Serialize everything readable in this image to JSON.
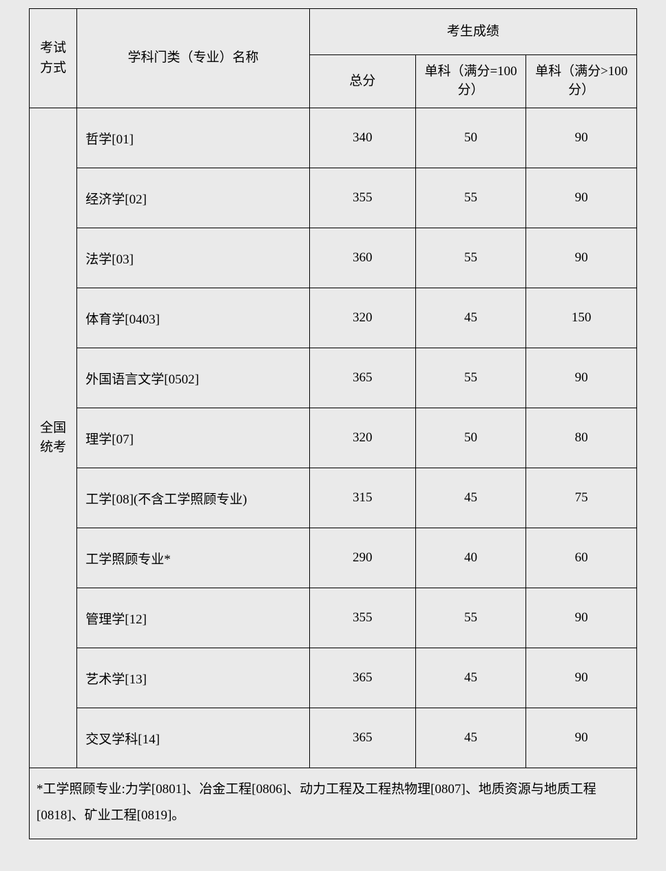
{
  "headers": {
    "exam_type": "考试\n方式",
    "subject_name": "学科门类（专业）名称",
    "score_group": "考生成绩",
    "total": "总分",
    "sub100": "单科（满分=100 分）",
    "subgt100": "单科（满分>100 分）"
  },
  "exam_type_label": "全国\n统考",
  "rows": [
    {
      "subject": "哲学[01]",
      "total": "340",
      "sub100": "50",
      "subgt100": "90"
    },
    {
      "subject": "经济学[02]",
      "total": "355",
      "sub100": "55",
      "subgt100": "90"
    },
    {
      "subject": "法学[03]",
      "total": "360",
      "sub100": "55",
      "subgt100": "90"
    },
    {
      "subject": "体育学[0403]",
      "total": "320",
      "sub100": "45",
      "subgt100": "150"
    },
    {
      "subject": "外国语言文学[0502]",
      "total": "365",
      "sub100": "55",
      "subgt100": "90"
    },
    {
      "subject": "理学[07]",
      "total": "320",
      "sub100": "50",
      "subgt100": "80"
    },
    {
      "subject": "工学[08](不含工学照顾专业)",
      "total": "315",
      "sub100": "45",
      "subgt100": "75"
    },
    {
      "subject": "工学照顾专业*",
      "total": "290",
      "sub100": "40",
      "subgt100": "60"
    },
    {
      "subject": "管理学[12]",
      "total": "355",
      "sub100": "55",
      "subgt100": "90"
    },
    {
      "subject": "艺术学[13]",
      "total": "365",
      "sub100": "45",
      "subgt100": "90"
    },
    {
      "subject": "交叉学科[14]",
      "total": "365",
      "sub100": "45",
      "subgt100": "90"
    }
  ],
  "footnote": "*工学照顾专业:力学[0801]、冶金工程[0806]、动力工程及工程热物理[0807]、地质资源与地质工程[0818]、矿业工程[0819]。"
}
